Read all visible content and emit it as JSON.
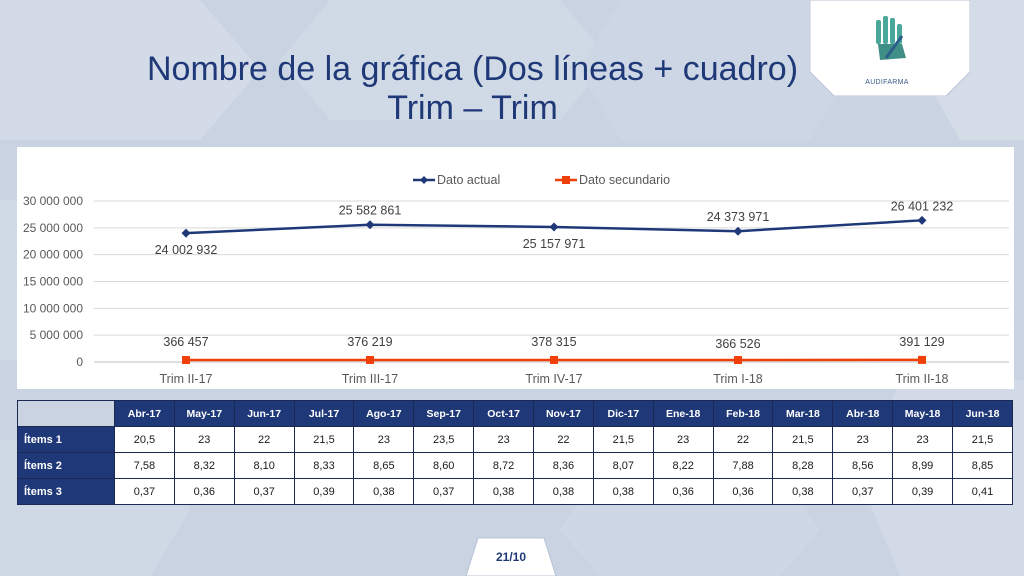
{
  "slide": {
    "title_line1": "Nombre de la gráfica (Dos líneas + cuadro)",
    "title_line2": "Trim – Trim",
    "logo_text": "AUDIFARMA",
    "page_number": "21/10"
  },
  "colors": {
    "primary": "#1f3978",
    "secondary": "#f0400a",
    "background": "#c9d3e2",
    "panel": "#ffffff"
  },
  "chart_data": {
    "type": "line",
    "categories": [
      "Trim II-17",
      "Trim III-17",
      "Trim IV-17",
      "Trim I-18",
      "Trim II-18"
    ],
    "series": [
      {
        "name": "Dato actual",
        "values": [
          24002932,
          25582861,
          25157971,
          24373971,
          26401232
        ],
        "labels": [
          "24 002 932",
          "25 582 861",
          "25 157 971",
          "24 373 971",
          "26 401 232"
        ]
      },
      {
        "name": "Dato secundario",
        "values": [
          366457,
          376219,
          378315,
          366526,
          391129
        ],
        "labels": [
          "366 457",
          "376 219",
          "378 315",
          "366 526",
          "391 129"
        ]
      }
    ],
    "yticks": [
      "0",
      "5 000 000",
      "10 000 000",
      "15 000 000",
      "20 000 000",
      "25 000 000",
      "30 000 000"
    ],
    "ylim": [
      0,
      30000000
    ],
    "grid": true,
    "legend": "top"
  },
  "table": {
    "columns": [
      "Abr-17",
      "May-17",
      "Jun-17",
      "Jul-17",
      "Ago-17",
      "Sep-17",
      "Oct-17",
      "Nov-17",
      "Dic-17",
      "Ene-18",
      "Feb-18",
      "Mar-18",
      "Abr-18",
      "May-18",
      "Jun-18"
    ],
    "rows": [
      {
        "label": "Ítems 1",
        "values": [
          "20,5",
          "23",
          "22",
          "21,5",
          "23",
          "23,5",
          "23",
          "22",
          "21,5",
          "23",
          "22",
          "21,5",
          "23",
          "23",
          "21,5"
        ]
      },
      {
        "label": "Ítems 2",
        "values": [
          "7,58",
          "8,32",
          "8,10",
          "8,33",
          "8,65",
          "8,60",
          "8,72",
          "8,36",
          "8,07",
          "8,22",
          "7,88",
          "8,28",
          "8,56",
          "8,99",
          "8,85"
        ]
      },
      {
        "label": "Ítems 3",
        "values": [
          "0,37",
          "0,36",
          "0,37",
          "0,39",
          "0,38",
          "0,37",
          "0,38",
          "0,38",
          "0,38",
          "0,36",
          "0,36",
          "0,38",
          "0,37",
          "0,39",
          "0,41"
        ]
      }
    ]
  }
}
